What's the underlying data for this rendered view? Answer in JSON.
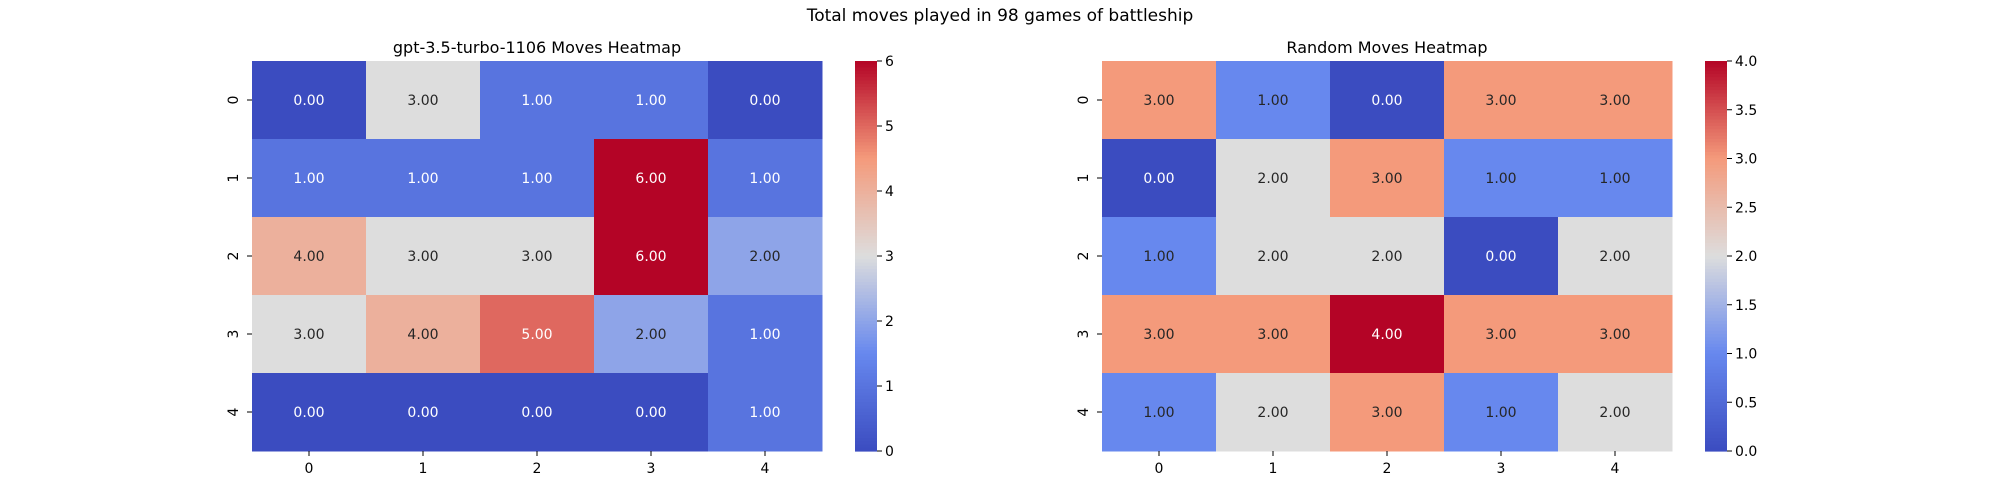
{
  "figure": {
    "suptitle": "Total moves played in 98 games of battleship"
  },
  "colormap": {
    "low": "#3b4cc0",
    "mid": "#dddddd",
    "high": "#b40426"
  },
  "chart_data": [
    {
      "type": "heatmap",
      "title": "gpt-3.5-turbo-1106 Moves Heatmap",
      "xlabel": "",
      "ylabel": "",
      "x_ticks": [
        "0",
        "1",
        "2",
        "3",
        "4"
      ],
      "y_ticks": [
        "0",
        "1",
        "2",
        "3",
        "4"
      ],
      "values": [
        [
          0,
          3,
          1,
          1,
          0
        ],
        [
          1,
          1,
          1,
          6,
          1
        ],
        [
          4,
          3,
          3,
          6,
          2
        ],
        [
          3,
          4,
          5,
          2,
          1
        ],
        [
          0,
          0,
          0,
          0,
          1
        ]
      ],
      "value_range": [
        0,
        6
      ],
      "value_format": "2 decimals",
      "colorbar_ticks": [
        "0",
        "1",
        "2",
        "3",
        "4",
        "5",
        "6"
      ]
    },
    {
      "type": "heatmap",
      "title": "Random Moves Heatmap",
      "xlabel": "",
      "ylabel": "",
      "x_ticks": [
        "0",
        "1",
        "2",
        "3",
        "4"
      ],
      "y_ticks": [
        "0",
        "1",
        "2",
        "3",
        "4"
      ],
      "values": [
        [
          3,
          1,
          0,
          3,
          3
        ],
        [
          0,
          2,
          3,
          1,
          1
        ],
        [
          1,
          2,
          2,
          0,
          2
        ],
        [
          3,
          3,
          4,
          3,
          3
        ],
        [
          1,
          2,
          3,
          1,
          2
        ]
      ],
      "value_range": [
        0,
        4
      ],
      "value_format": "2 decimals",
      "colorbar_ticks": [
        "0.0",
        "0.5",
        "1.0",
        "1.5",
        "2.0",
        "2.5",
        "3.0",
        "3.5",
        "4.0"
      ]
    }
  ]
}
